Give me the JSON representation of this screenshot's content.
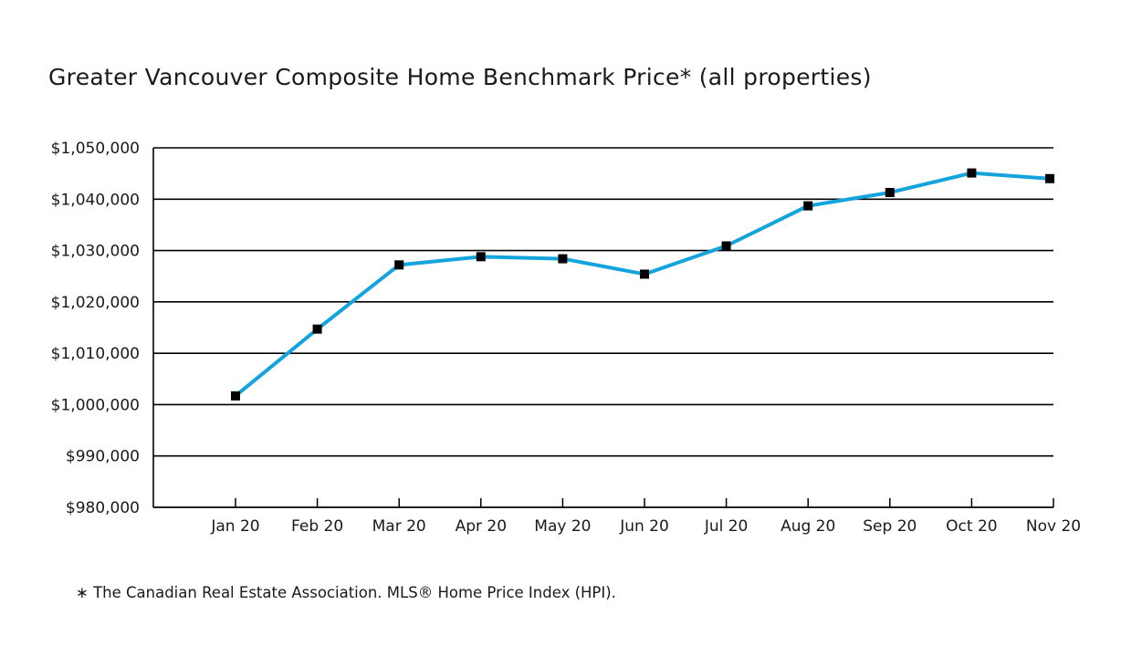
{
  "chart_data": {
    "type": "line",
    "title": "Greater Vancouver Composite Home Benchmark Price* (all properties)",
    "xlabel": "",
    "ylabel": "",
    "categories": [
      "Jan 20",
      "Feb 20",
      "Mar 20",
      "Apr 20",
      "May 20",
      "Jun 20",
      "Jul 20",
      "Aug 20",
      "Sep 20",
      "Oct 20",
      "Nov 20"
    ],
    "series": [
      {
        "values": [
          1001700,
          1014700,
          1027200,
          1028800,
          1028400,
          1025400,
          1030900,
          1038700,
          1041300,
          1045100,
          1044000
        ],
        "color": "#13a3dd",
        "marker": "square",
        "marker_color": "#000000"
      }
    ],
    "ylim": [
      980000,
      1050000
    ],
    "y_ticks": [
      {
        "value": 1050000,
        "label": "$1,050,000"
      },
      {
        "value": 1040000,
        "label": "$1,040,000"
      },
      {
        "value": 1030000,
        "label": "$1,030,000"
      },
      {
        "value": 1020000,
        "label": "$1,020,000"
      },
      {
        "value": 1010000,
        "label": "$1,010,000"
      },
      {
        "value": 1000000,
        "label": "$1,000,000"
      },
      {
        "value": 990000,
        "label": "$990,000"
      },
      {
        "value": 980000,
        "label": "$980,000"
      }
    ],
    "grid": true,
    "legend": "none",
    "footnote": "∗ The Canadian Real Estate Association. MLS® Home Price Index (HPI)."
  }
}
